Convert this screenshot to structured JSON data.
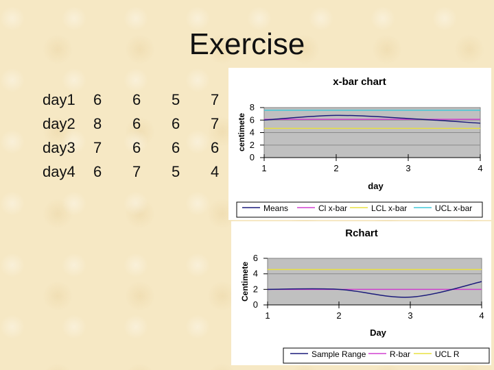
{
  "slide": {
    "title": "Exercise"
  },
  "table": {
    "rows": [
      {
        "label": "day1",
        "values": [
          "6",
          "6",
          "5",
          "7"
        ]
      },
      {
        "label": "day2",
        "values": [
          "8",
          "6",
          "6",
          "7"
        ]
      },
      {
        "label": "day3",
        "values": [
          "7",
          "6",
          "6",
          "6"
        ]
      },
      {
        "label": "day4",
        "values": [
          "6",
          "7",
          "5",
          "4"
        ]
      }
    ]
  },
  "chart_data": [
    {
      "type": "line",
      "title": "x-bar chart",
      "xlabel": "day",
      "ylabel": "centimete",
      "x": [
        1,
        2,
        3,
        4
      ],
      "xticks": [
        "1",
        "2",
        "3",
        "4"
      ],
      "yticks": [
        "0",
        "2",
        "4",
        "6",
        "8"
      ],
      "ylim": [
        0,
        8
      ],
      "grid": true,
      "series": [
        {
          "name": "Means",
          "color": "#1a1a7a",
          "values": [
            6,
            6.75,
            6.25,
            5.5
          ]
        },
        {
          "name": "Cl x-bar",
          "color": "#d040d0",
          "values": [
            6.125,
            6.125,
            6.125,
            6.125
          ]
        },
        {
          "name": "LCL x-bar",
          "color": "#e8e040",
          "values": [
            4.67,
            4.67,
            4.67,
            4.67
          ]
        },
        {
          "name": "UCL x-bar",
          "color": "#40c8d8",
          "values": [
            7.58,
            7.58,
            7.58,
            7.58
          ]
        }
      ],
      "legend_position": "bottom"
    },
    {
      "type": "line",
      "title": "Rchart",
      "xlabel": "Day",
      "ylabel": "Centimete",
      "x": [
        1,
        2,
        3,
        4
      ],
      "xticks": [
        "1",
        "2",
        "3",
        "4"
      ],
      "yticks": [
        "0",
        "2",
        "4",
        "6"
      ],
      "ylim": [
        0,
        6
      ],
      "grid": true,
      "series": [
        {
          "name": "Sample Range",
          "color": "#1a1a7a",
          "values": [
            2,
            2,
            1,
            3
          ]
        },
        {
          "name": "R-bar",
          "color": "#d040d0",
          "values": [
            2,
            2,
            2,
            2
          ]
        },
        {
          "name": "UCL R",
          "legend_label": "UCL R",
          "color": "#e8e040",
          "values": [
            4.56,
            4.56,
            4.56,
            4.56
          ]
        }
      ],
      "legend_position": "bottom"
    }
  ]
}
